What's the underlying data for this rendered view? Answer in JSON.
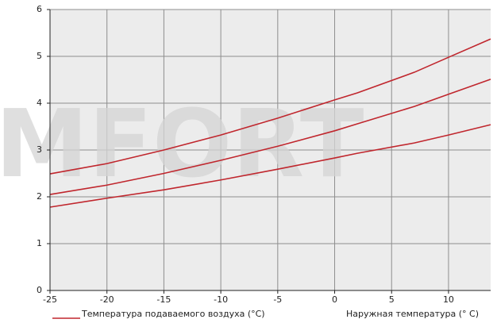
{
  "chart_data": {
    "type": "line",
    "x": [
      -25,
      -20,
      -15,
      -10,
      -5,
      0,
      2,
      7,
      10,
      13.7
    ],
    "series": [
      {
        "color": "#c0262d",
        "values": [
          2.49,
          2.71,
          3.0,
          3.32,
          3.68,
          4.07,
          4.22,
          4.66,
          4.98,
          5.37
        ]
      },
      {
        "color": "#c0262d",
        "values": [
          2.05,
          2.25,
          2.5,
          2.78,
          3.08,
          3.41,
          3.56,
          3.93,
          4.19,
          4.51
        ]
      },
      {
        "color": "#c0262d",
        "values": [
          1.78,
          1.97,
          2.15,
          2.36,
          2.59,
          2.83,
          2.93,
          3.15,
          3.32,
          3.54
        ]
      }
    ],
    "xlim": [
      -25,
      13.7
    ],
    "ylim": [
      0,
      6
    ],
    "xticks": [
      -25,
      -20,
      -15,
      -10,
      -5,
      0,
      5,
      10
    ],
    "yticks": [
      0,
      1,
      2,
      3,
      4,
      5,
      6
    ],
    "grid": true,
    "legend_label": "Температура подаваемого воздуха (°C)",
    "x_label": "Наружная температура (° C)",
    "watermark": "MFORT"
  }
}
